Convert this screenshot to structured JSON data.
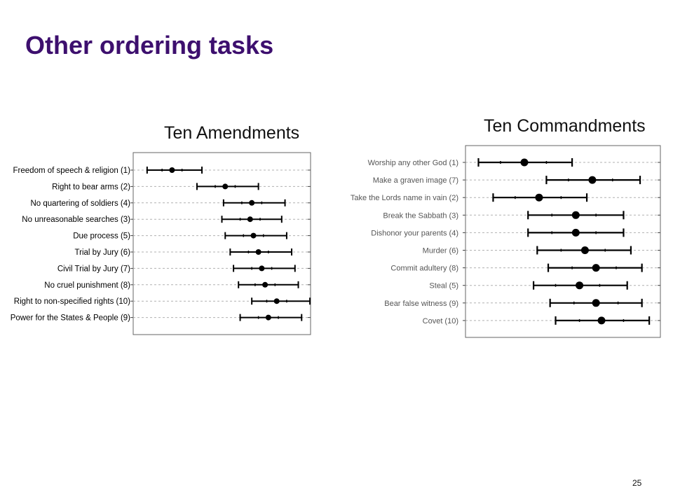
{
  "slide": {
    "title": "Other ordering tasks",
    "page_number": "25"
  },
  "chart_data": [
    {
      "type": "scatter",
      "title": "Ten Amendments",
      "grid": true,
      "error_bars": true,
      "categories": [
        "Freedom of speech & religion  (1)",
        "Right to bear arms  (2)",
        "No quartering of soldiers  (4)",
        "No unreasonable searches  (3)",
        "Due process  (5)",
        "Trial by Jury  (6)",
        "Civil Trial by Jury  (7)",
        "No cruel punishment  (8)",
        "Right to non-specified rights  (10)",
        "Power for the States & People  (9)"
      ],
      "points": [
        {
          "mean": 0.2,
          "inner_low": 0.14,
          "inner_high": 0.26,
          "outer_low": 0.05,
          "outer_high": 0.38
        },
        {
          "mean": 0.52,
          "inner_low": 0.46,
          "inner_high": 0.58,
          "outer_low": 0.35,
          "outer_high": 0.72
        },
        {
          "mean": 0.68,
          "inner_low": 0.62,
          "inner_high": 0.74,
          "outer_low": 0.51,
          "outer_high": 0.88
        },
        {
          "mean": 0.67,
          "inner_low": 0.61,
          "inner_high": 0.73,
          "outer_low": 0.5,
          "outer_high": 0.86
        },
        {
          "mean": 0.69,
          "inner_low": 0.63,
          "inner_high": 0.75,
          "outer_low": 0.52,
          "outer_high": 0.89
        },
        {
          "mean": 0.72,
          "inner_low": 0.66,
          "inner_high": 0.78,
          "outer_low": 0.55,
          "outer_high": 0.92
        },
        {
          "mean": 0.74,
          "inner_low": 0.68,
          "inner_high": 0.8,
          "outer_low": 0.57,
          "outer_high": 0.94
        },
        {
          "mean": 0.76,
          "inner_low": 0.7,
          "inner_high": 0.82,
          "outer_low": 0.6,
          "outer_high": 0.96
        },
        {
          "mean": 0.83,
          "inner_low": 0.77,
          "inner_high": 0.89,
          "outer_low": 0.68,
          "outer_high": 1.03
        },
        {
          "mean": 0.78,
          "inner_low": 0.72,
          "inner_high": 0.84,
          "outer_low": 0.61,
          "outer_high": 0.98
        }
      ]
    },
    {
      "type": "scatter",
      "title": "Ten Commandments",
      "grid": true,
      "error_bars": true,
      "categories": [
        "Worship any other God  (1)",
        "Make a graven image  (7)",
        "Take the Lords name in vain  (2)",
        "Break the Sabbath  (3)",
        "Dishonor your parents  (4)",
        "Murder  (6)",
        "Commit adultery  (8)",
        "Steal  (5)",
        "Bear false witness  (9)",
        "Covet (10)"
      ],
      "points": [
        {
          "mean": 0.29,
          "inner_low": 0.16,
          "inner_high": 0.41,
          "outer_low": 0.04,
          "outer_high": 0.55
        },
        {
          "mean": 0.66,
          "inner_low": 0.53,
          "inner_high": 0.77,
          "outer_low": 0.41,
          "outer_high": 0.92
        },
        {
          "mean": 0.37,
          "inner_low": 0.24,
          "inner_high": 0.49,
          "outer_low": 0.12,
          "outer_high": 0.63
        },
        {
          "mean": 0.57,
          "inner_low": 0.44,
          "inner_high": 0.68,
          "outer_low": 0.31,
          "outer_high": 0.83
        },
        {
          "mean": 0.57,
          "inner_low": 0.44,
          "inner_high": 0.68,
          "outer_low": 0.31,
          "outer_high": 0.83
        },
        {
          "mean": 0.62,
          "inner_low": 0.49,
          "inner_high": 0.73,
          "outer_low": 0.36,
          "outer_high": 0.87
        },
        {
          "mean": 0.68,
          "inner_low": 0.55,
          "inner_high": 0.79,
          "outer_low": 0.42,
          "outer_high": 0.93
        },
        {
          "mean": 0.59,
          "inner_low": 0.46,
          "inner_high": 0.7,
          "outer_low": 0.34,
          "outer_high": 0.85
        },
        {
          "mean": 0.68,
          "inner_low": 0.56,
          "inner_high": 0.8,
          "outer_low": 0.43,
          "outer_high": 0.93
        },
        {
          "mean": 0.71,
          "inner_low": 0.59,
          "inner_high": 0.83,
          "outer_low": 0.46,
          "outer_high": 0.97
        }
      ]
    }
  ]
}
